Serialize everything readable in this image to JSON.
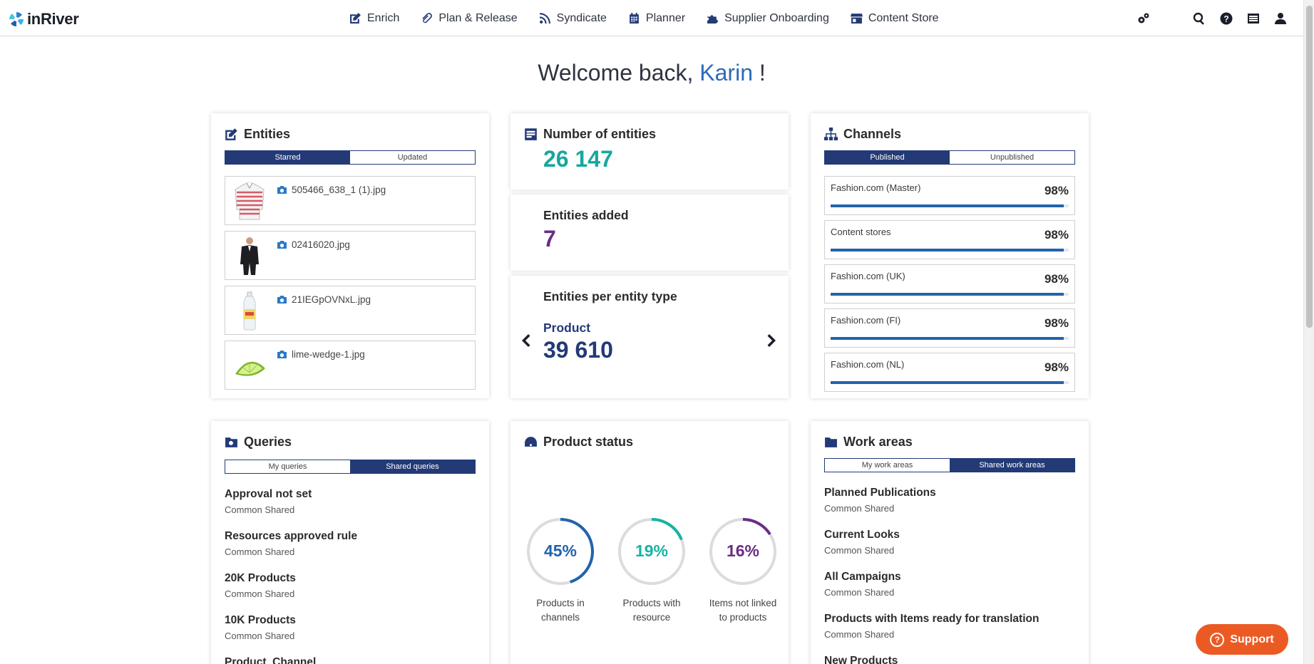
{
  "brand": {
    "name": "inRiver"
  },
  "nav": {
    "items": [
      {
        "label": "Enrich",
        "icon": "edit-icon"
      },
      {
        "label": "Plan & Release",
        "icon": "paperclip-icon"
      },
      {
        "label": "Syndicate",
        "icon": "rss-icon"
      },
      {
        "label": "Planner",
        "icon": "calendar-icon"
      },
      {
        "label": "Supplier Onboarding",
        "icon": "puzzle-icon"
      },
      {
        "label": "Content Store",
        "icon": "store-icon"
      }
    ],
    "tools": [
      "settings-gears-icon",
      "search-icon",
      "help-icon",
      "list-icon",
      "user-icon"
    ]
  },
  "welcome": {
    "prefix": "Welcome back, ",
    "name": "Karin",
    "suffix": " !"
  },
  "entities": {
    "title": "Entities",
    "tabs": {
      "starred": "Starred",
      "updated": "Updated",
      "active": "starred"
    },
    "items": [
      {
        "file": "505466_638_1 (1).jpg",
        "thumb": "striped-sweater"
      },
      {
        "file": "02416020.jpg",
        "thumb": "suit-man"
      },
      {
        "file": "21IEGpOVNxL.jpg",
        "thumb": "water-bottle"
      },
      {
        "file": "lime-wedge-1.jpg",
        "thumb": "lime-wedge"
      }
    ]
  },
  "number_of_entities": {
    "title": "Number of entities",
    "value": "26 147",
    "color": "#16a89c"
  },
  "entities_added": {
    "title": "Entities added",
    "value": "7",
    "color": "#6a2c86"
  },
  "entities_per_type": {
    "title": "Entities per entity type",
    "type": "Product",
    "value": "39 610",
    "color": "#233a77"
  },
  "channels": {
    "title": "Channels",
    "tabs": {
      "published": "Published",
      "unpublished": "Unpublished",
      "active": "published"
    },
    "items": [
      {
        "name": "Fashion.com (Master)",
        "pct": "98%",
        "value": 0.98
      },
      {
        "name": "Content stores",
        "pct": "98%",
        "value": 0.98
      },
      {
        "name": "Fashion.com (UK)",
        "pct": "98%",
        "value": 0.98
      },
      {
        "name": "Fashion.com (FI)",
        "pct": "98%",
        "value": 0.98
      },
      {
        "name": "Fashion.com (NL)",
        "pct": "98%",
        "value": 0.98
      }
    ]
  },
  "queries": {
    "title": "Queries",
    "tabs": {
      "mine": "My queries",
      "shared": "Shared queries",
      "active": "shared"
    },
    "items": [
      {
        "title": "Approval not set",
        "sub": "Common Shared"
      },
      {
        "title": "Resources approved rule",
        "sub": "Common Shared"
      },
      {
        "title": "20K Products",
        "sub": "Common Shared"
      },
      {
        "title": "10K Products",
        "sub": "Common Shared"
      },
      {
        "title": "Product_Channel",
        "sub": ""
      }
    ]
  },
  "product_status": {
    "title": "Product status",
    "donuts": [
      {
        "pct": "45%",
        "value": 0.45,
        "label1": "Products in",
        "label2": "channels",
        "color": "#2263ac"
      },
      {
        "pct": "19%",
        "value": 0.19,
        "label1": "Products with",
        "label2": "resource",
        "color": "#16b3a4"
      },
      {
        "pct": "16%",
        "value": 0.16,
        "label1": "Items not linked",
        "label2": "to products",
        "color": "#6a2c86"
      }
    ]
  },
  "work_areas": {
    "title": "Work areas",
    "tabs": {
      "mine": "My work areas",
      "shared": "Shared work areas",
      "active": "shared"
    },
    "items": [
      {
        "title": "Planned Publications",
        "sub": "Common Shared"
      },
      {
        "title": "Current Looks",
        "sub": "Common Shared"
      },
      {
        "title": "All Campaigns",
        "sub": "Common Shared"
      },
      {
        "title": "Products with Items ready for translation",
        "sub": "Common Shared"
      },
      {
        "title": "New Products",
        "sub": ""
      }
    ]
  },
  "support": {
    "label": "Support"
  }
}
